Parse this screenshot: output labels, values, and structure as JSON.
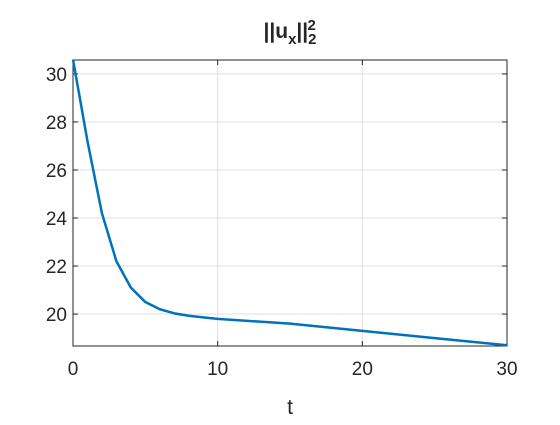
{
  "chart_data": {
    "type": "line",
    "title": [
      {
        "text": "||u"
      },
      {
        "text": "x",
        "script": "sub"
      },
      {
        "text": "||"
      },
      {
        "text": "2",
        "script": "sub"
      },
      {
        "text": "2",
        "script": "sup"
      }
    ],
    "xlabel": "t",
    "x": [
      0,
      1,
      2,
      3,
      4,
      5,
      6,
      7,
      8,
      9,
      10,
      15,
      20,
      25,
      30
    ],
    "series": [
      {
        "color": "#0072bd",
        "values": [
          30.6,
          27.2,
          24.2,
          22.2,
          21.1,
          20.5,
          20.2,
          20.03,
          19.93,
          19.86,
          19.8,
          19.6,
          19.3,
          19.0,
          18.7
        ]
      }
    ],
    "xlim": [
      0,
      30
    ],
    "ylim": [
      18.67,
      30.58
    ],
    "xticks": [
      0,
      10,
      20,
      30
    ],
    "yticks": [
      20,
      22,
      24,
      26,
      28,
      30
    ],
    "grid": true
  }
}
